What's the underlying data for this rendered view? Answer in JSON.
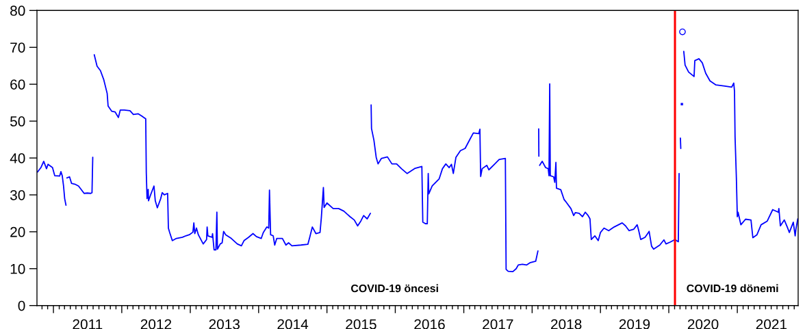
{
  "chart_data": {
    "type": "line",
    "xlim": [
      "2010-10-05",
      "2021-11-22"
    ],
    "xticks": [
      {
        "value": "2011-01-01",
        "label": null
      },
      {
        "value": "2011-07-02",
        "label": "2011"
      },
      {
        "value": "2012-01-01",
        "label": null
      },
      {
        "value": "2012-07-02",
        "label": "2012"
      },
      {
        "value": "2013-01-01",
        "label": null
      },
      {
        "value": "2013-07-02",
        "label": "2013"
      },
      {
        "value": "2014-01-01",
        "label": null
      },
      {
        "value": "2014-07-02",
        "label": "2014"
      },
      {
        "value": "2015-01-01",
        "label": null
      },
      {
        "value": "2015-07-02",
        "label": "2015"
      },
      {
        "value": "2016-01-01",
        "label": null
      },
      {
        "value": "2016-07-02",
        "label": "2016"
      },
      {
        "value": "2017-01-01",
        "label": null
      },
      {
        "value": "2017-07-02",
        "label": "2017"
      },
      {
        "value": "2018-01-01",
        "label": null
      },
      {
        "value": "2018-07-02",
        "label": "2018"
      },
      {
        "value": "2019-01-01",
        "label": null
      },
      {
        "value": "2019-07-02",
        "label": "2019"
      },
      {
        "value": "2020-01-01",
        "label": null
      },
      {
        "value": "2020-07-02",
        "label": "2020"
      },
      {
        "value": "2021-01-01",
        "label": null
      },
      {
        "value": "2021-07-02",
        "label": "2021"
      }
    ],
    "ylim": [
      0,
      80
    ],
    "yticks": [
      0,
      10,
      20,
      30,
      40,
      50,
      60,
      70,
      80
    ],
    "grid": false,
    "legend": false,
    "ref_lines": [
      {
        "axis": "x",
        "value": "2020-02-03",
        "color": "#ff0000",
        "line_style": "solid"
      }
    ],
    "annotations": [
      "COVID-19 öncesi",
      "COVID-19 dönemi"
    ],
    "series": [
      {
        "color": "#0000ff",
        "marker": "none",
        "line_style": "solid",
        "x": [
          "2010-10-08",
          "2010-10-26",
          "2010-11-10",
          "2010-11-25",
          "2010-12-03",
          "2010-12-27",
          "2011-01-08",
          "2011-02-03",
          "2011-02-10",
          "2011-02-17",
          "2011-02-24",
          "2011-03-02",
          "2011-03-09",
          "2011-03-11",
          "2011-03-14",
          "2011-03-28",
          "2011-04-08",
          "2011-04-26",
          "2011-05-15",
          "2011-05-27",
          "2011-06-14",
          "2011-07-01",
          "2011-07-19",
          "2011-07-26",
          "2011-07-30",
          "2011-08-03",
          "2011-08-07",
          "2011-08-22",
          "2011-09-09",
          "2011-09-27",
          "2011-10-15",
          "2011-10-20",
          "2011-11-08",
          "2011-11-26",
          "2011-12-14",
          "2011-12-24",
          "2012-01-15",
          "2012-02-14",
          "2012-03-03",
          "2012-03-28",
          "2012-04-16",
          "2012-05-08",
          "2012-05-11",
          "2012-05-15",
          "2012-05-21",
          "2012-05-23",
          "2012-06-03",
          "2012-06-21",
          "2012-06-28",
          "2012-07-09",
          "2012-07-27",
          "2012-08-04",
          "2012-08-15",
          "2012-09-02",
          "2012-09-06",
          "2012-09-13",
          "2012-09-27",
          "2012-10-19",
          "2012-11-20",
          "2012-12-08",
          "2012-12-27",
          "2013-01-15",
          "2013-01-20",
          "2013-01-25",
          "2013-02-03",
          "2013-02-13",
          "2013-03-11",
          "2013-03-29",
          "2013-04-01",
          "2013-04-05",
          "2013-04-27",
          "2013-04-30",
          "2013-05-08",
          "2013-05-18",
          "2013-05-23",
          "2013-05-26",
          "2013-06-10",
          "2013-06-20",
          "2013-06-28",
          "2013-07-09",
          "2013-08-08",
          "2013-09-09",
          "2013-10-01",
          "2013-10-15",
          "2013-11-08",
          "2013-12-02",
          "2013-12-20",
          "2014-01-15",
          "2014-01-26",
          "2014-02-14",
          "2014-02-24",
          "2014-02-28",
          "2014-03-06",
          "2014-03-20",
          "2014-03-28",
          "2014-04-08",
          "2014-05-08",
          "2014-05-27",
          "2014-06-10",
          "2014-06-28",
          "2014-08-15",
          "2014-09-21",
          "2014-10-01",
          "2014-10-15",
          "2014-11-03",
          "2014-11-25",
          "2014-12-02",
          "2014-12-13",
          "2014-12-17",
          "2015-01-01",
          "2015-02-03",
          "2015-03-04",
          "2015-04-01",
          "2015-05-04",
          "2015-05-27",
          "2015-06-14",
          "2015-07-01",
          "2015-07-16",
          "2015-08-04",
          "2015-08-21",
          "2015-08-23",
          "2015-08-25",
          "2015-08-27",
          "2015-09-09",
          "2015-09-21",
          "2015-10-01",
          "2015-10-19",
          "2015-11-20",
          "2015-12-14",
          "2016-01-08",
          "2016-02-03",
          "2016-03-04",
          "2016-04-16",
          "2016-05-22",
          "2016-05-27",
          "2016-06-10",
          "2016-06-20",
          "2016-06-25",
          "2016-06-28",
          "2016-07-16",
          "2016-08-22",
          "2016-09-09",
          "2016-09-27",
          "2016-10-15",
          "2016-10-27",
          "2016-11-06",
          "2016-11-20",
          "2016-12-14",
          "2017-01-08",
          "2017-02-03",
          "2017-02-21",
          "2017-03-22",
          "2017-03-28",
          "2017-04-01",
          "2017-04-09",
          "2017-05-04",
          "2017-05-15",
          "2017-06-14",
          "2017-07-09",
          "2017-08-11",
          "2017-08-15",
          "2017-08-26",
          "2017-09-20",
          "2017-10-08",
          "2017-10-19",
          "2017-11-10",
          "2017-12-02",
          "2017-12-20",
          "2018-01-20",
          "2018-02-01",
          "2018-02-03",
          "2018-02-05",
          "2018-02-06",
          "2018-02-08",
          "2018-02-10",
          "2018-02-24",
          "2018-03-14",
          "2018-03-28",
          "2018-04-01",
          "2018-04-05",
          "2018-04-08",
          "2018-04-26",
          "2018-05-02",
          "2018-05-08",
          "2018-05-11",
          "2018-06-03",
          "2018-06-21",
          "2018-07-01",
          "2018-07-27",
          "2018-08-11",
          "2018-08-20",
          "2018-09-09",
          "2018-09-27",
          "2018-10-12",
          "2018-10-27",
          "2018-11-06",
          "2018-11-13",
          "2018-12-02",
          "2018-12-20",
          "2019-01-01",
          "2019-01-20",
          "2019-02-14",
          "2019-03-15",
          "2019-04-27",
          "2019-05-15",
          "2019-06-03",
          "2019-06-28",
          "2019-07-16",
          "2019-07-24",
          "2019-08-04",
          "2019-08-27",
          "2019-09-14",
          "2019-09-18",
          "2019-10-01",
          "2019-10-12",
          "2019-11-14",
          "2019-12-06",
          "2019-12-17",
          "2020-01-08",
          "2020-02-03",
          "2020-02-21",
          "2020-02-25",
          "2020-02-28",
          "2020-03-03",
          "2020-03-05",
          "2020-03-16",
          "2020-03-21",
          "2020-03-28",
          "2020-04-16",
          "2020-05-15",
          "2020-05-19",
          "2020-06-10",
          "2020-06-28",
          "2020-07-16",
          "2020-08-08",
          "2020-09-09",
          "2020-10-27",
          "2020-12-02",
          "2020-12-13",
          "2020-12-17",
          "2020-12-20",
          "2020-12-27",
          "2021-01-01",
          "2021-01-05",
          "2021-01-20",
          "2021-02-14",
          "2021-03-15",
          "2021-03-25",
          "2021-04-16",
          "2021-05-08",
          "2021-06-10",
          "2021-07-09",
          "2021-08-08",
          "2021-08-11",
          "2021-08-19",
          "2021-09-09",
          "2021-09-27",
          "2021-10-06",
          "2021-10-27",
          "2021-11-06",
          "2021-11-10",
          "2021-11-20"
        ],
        "values": [
          36.2,
          37.4,
          39.1,
          37.1,
          38.3,
          37.4,
          35.2,
          35.1,
          36.3,
          35.2,
          32.4,
          29.0,
          27.2,
          null,
          34.6,
          34.9,
          33.1,
          32.9,
          32.4,
          31.6,
          30.4,
          30.5,
          30.4,
          30.6,
          40.2,
          null,
          68.0,
          64.9,
          63.7,
          61.2,
          57.5,
          54.1,
          52.7,
          52.5,
          51.0,
          53.0,
          53.0,
          52.8,
          51.8,
          52.0,
          51.4,
          50.6,
          36.0,
          29.0,
          31.5,
          28.4,
          30.0,
          32.4,
          28.4,
          26.5,
          29.0,
          30.6,
          30.0,
          30.4,
          21.0,
          19.8,
          17.6,
          18.2,
          18.5,
          18.9,
          19.2,
          19.9,
          22.4,
          19.5,
          21.0,
          19.2,
          16.7,
          17.9,
          21.3,
          18.9,
          18.5,
          19.5,
          15.1,
          15.1,
          25.3,
          15.3,
          16.7,
          17.0,
          20.1,
          19.2,
          18.2,
          16.7,
          16.2,
          17.6,
          18.5,
          19.5,
          18.7,
          18.2,
          19.8,
          21.3,
          21.0,
          31.3,
          19.2,
          18.9,
          16.4,
          18.2,
          18.2,
          16.4,
          17.0,
          16.2,
          16.4,
          16.6,
          18.5,
          21.3,
          19.5,
          19.8,
          23.8,
          32.0,
          26.6,
          27.8,
          26.3,
          26.3,
          25.6,
          24.1,
          23.2,
          21.6,
          22.9,
          24.4,
          23.5,
          25.0,
          null,
          54.4,
          48.0,
          44.8,
          40.2,
          38.4,
          39.9,
          40.3,
          38.4,
          38.4,
          37.1,
          35.8,
          37.2,
          37.7,
          22.6,
          22.2,
          22.2,
          35.8,
          30.3,
          32.4,
          34.3,
          37.1,
          38.4,
          37.4,
          38.3,
          35.8,
          40.2,
          42.0,
          42.6,
          45.1,
          46.8,
          46.6,
          47.8,
          35.0,
          37.1,
          38.0,
          36.8,
          38.3,
          39.6,
          39.9,
          9.8,
          9.3,
          9.2,
          10.0,
          11.0,
          11.2,
          11.0,
          11.6,
          12.0,
          14.8,
          null,
          47.9,
          40.5,
          null,
          38.0,
          39.1,
          37.4,
          37.1,
          35.2,
          60.1,
          35.2,
          34.9,
          33.4,
          38.8,
          31.8,
          31.4,
          28.7,
          28.1,
          26.3,
          24.4,
          25.2,
          25.0,
          24.1,
          25.3,
          24.4,
          23.5,
          17.9,
          18.9,
          17.6,
          19.8,
          21.0,
          20.3,
          21.3,
          22.4,
          21.6,
          20.3,
          20.7,
          21.9,
          20.4,
          17.9,
          18.5,
          19.8,
          20.1,
          16.1,
          15.3,
          16.4,
          17.8,
          16.7,
          17.2,
          17.9,
          17.3,
          35.8,
          null,
          45.4,
          42.6,
          null,
          68.9,
          65.2,
          63.3,
          62.1,
          66.4,
          66.9,
          65.8,
          63.0,
          60.9,
          59.8,
          59.5,
          59.2,
          60.3,
          58.1,
          45.7,
          34.6,
          24.1,
          25.3,
          21.9,
          23.4,
          23.2,
          18.4,
          19.2,
          21.9,
          22.9,
          26.0,
          25.3,
          26.3,
          21.6,
          23.2,
          21.0,
          19.8,
          22.6,
          18.9,
          20.7,
          23.5
        ]
      },
      {
        "type": "scatter",
        "color": "#0000ff",
        "marker": "square",
        "x": [
          "2020-03-11"
        ],
        "values": [
          54.6
        ]
      },
      {
        "type": "scatter",
        "color": "#0000ff",
        "marker": "circle",
        "x": [
          "2020-03-14"
        ],
        "values": [
          74.2
        ]
      }
    ]
  }
}
